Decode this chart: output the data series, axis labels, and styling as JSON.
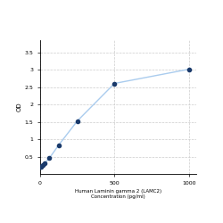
{
  "x": [
    0,
    7.8,
    15.6,
    31.25,
    62.5,
    125,
    250,
    500,
    1000
  ],
  "y": [
    0.197,
    0.216,
    0.252,
    0.311,
    0.457,
    0.833,
    1.524,
    2.604,
    3.012
  ],
  "line_color": "#aaccee",
  "marker_color": "#1a3a6b",
  "marker_size": 3,
  "xlabel_line1": "Human Laminin gamma 2 (LAMC2)",
  "xlabel_line2": "Concentration (pg/ml)",
  "ylabel": "OD",
  "xlim": [
    0,
    1050
  ],
  "ylim": [
    0.0,
    3.85
  ],
  "yticks": [
    0.5,
    1.0,
    1.5,
    2.0,
    2.5,
    3.0,
    3.5
  ],
  "ytick_labels": [
    "0.5",
    "1",
    "1.5",
    "2",
    "2.5",
    "3",
    "3.5"
  ],
  "xticks": [
    0,
    500,
    1000
  ],
  "xtick_labels": [
    "0",
    "500",
    "1000"
  ],
  "grid_color": "#cccccc",
  "bg_color": "#ffffff",
  "fig_bg_color": "#ffffff"
}
